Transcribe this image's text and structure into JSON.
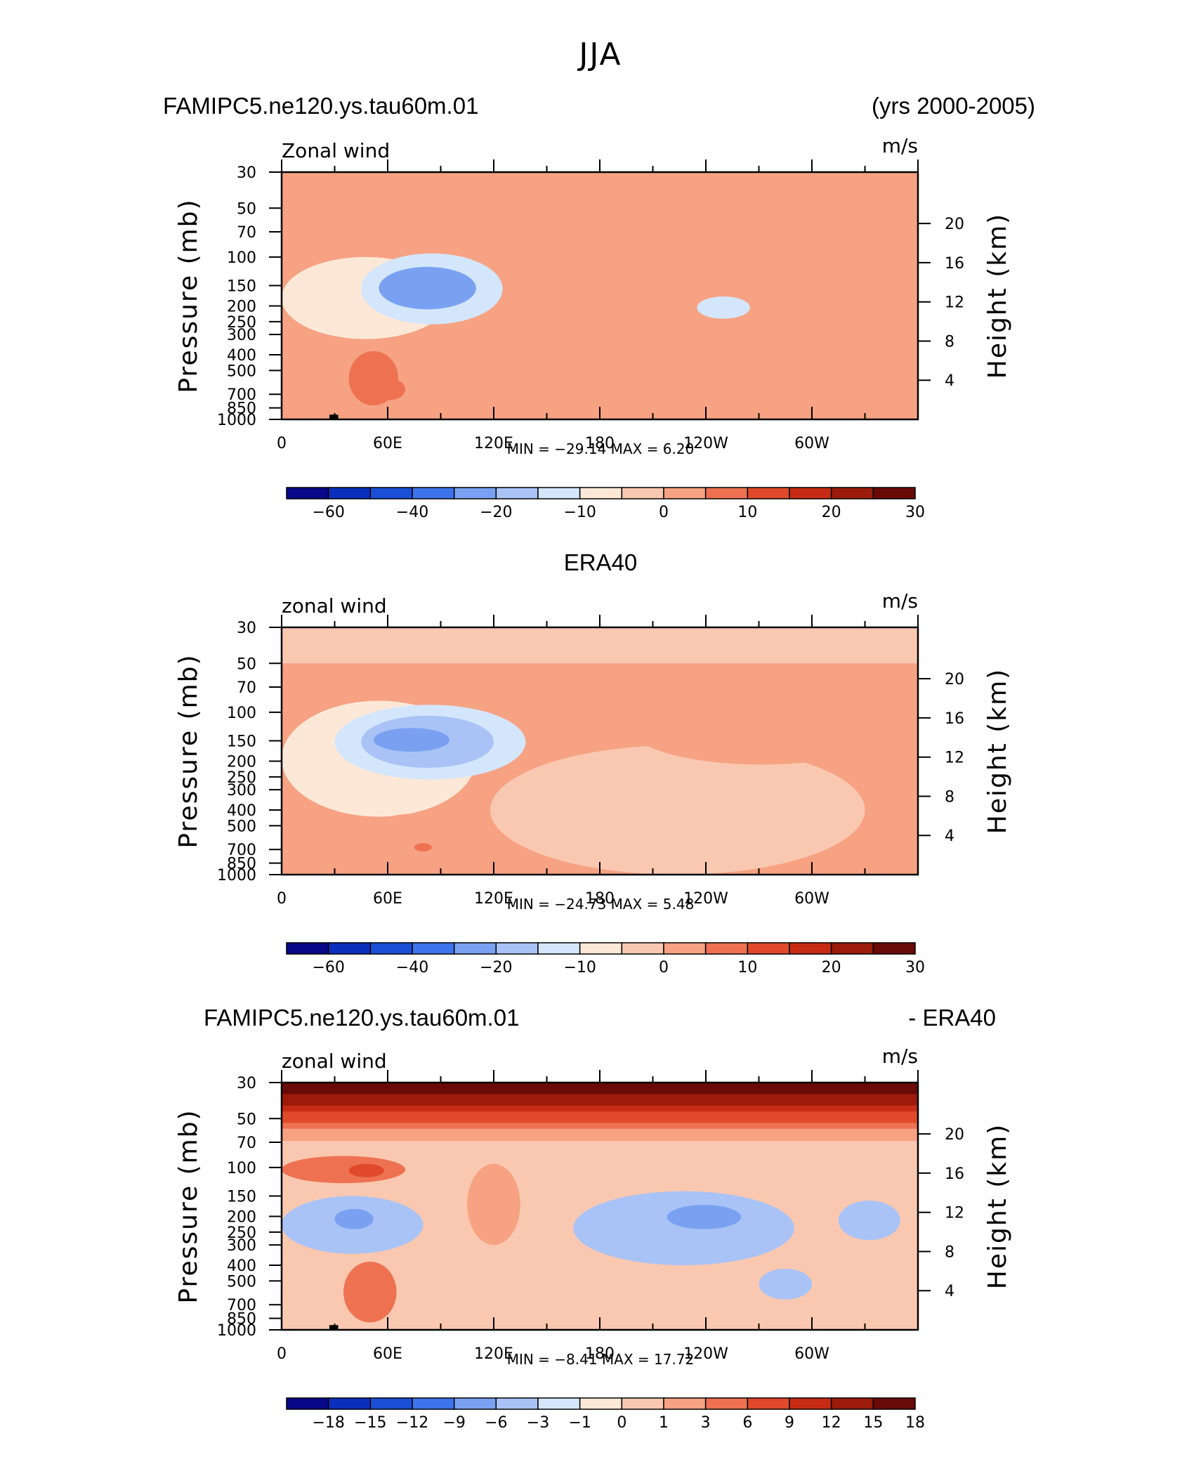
{
  "figure": {
    "title": "JJA",
    "colors": {
      "levels": [
        "#08088a",
        "#0b2fbd",
        "#1a4fd6",
        "#3d74ec",
        "#7aa1f1",
        "#a9c3f6",
        "#d4e6fb",
        "#fde8d8",
        "#fac8b0",
        "#f6a283",
        "#ee7252",
        "#e04a2a",
        "#c62b14",
        "#9c1b0b",
        "#6a0a06"
      ],
      "topography": "#000000"
    }
  },
  "panels": [
    {
      "header_left": "FAMIPC5.ne120.ys.tau60m.01",
      "header_center": "",
      "header_right": "(yrs 2000-2005)",
      "variable": "Zonal wind",
      "units": "m/s",
      "ylabel_left": "Pressure (mb)",
      "ylabel_right": "Height (km)",
      "stats_label": "MIN =  −29.14   MAX =     6.20",
      "colorbar_labels": [
        "−60",
        "−40",
        "−20",
        "−10",
        "0",
        "10",
        "20",
        "30"
      ]
    },
    {
      "header_left": "",
      "header_center": "ERA40",
      "header_right": "",
      "variable": "zonal wind",
      "units": "m/s",
      "ylabel_left": "Pressure (mb)",
      "ylabel_right": "Height (km)",
      "stats_label": "MIN =  −24.73   MAX =     5.48",
      "colorbar_labels": [
        "−60",
        "−40",
        "−20",
        "−10",
        "0",
        "10",
        "20",
        "30"
      ]
    },
    {
      "header_left": "FAMIPC5.ne120.ys.tau60m.01",
      "header_center": "",
      "header_right": "- ERA40",
      "variable": "zonal wind",
      "units": "m/s",
      "ylabel_left": "Pressure (mb)",
      "ylabel_right": "Height (km)",
      "stats_label": "MIN =    −8.41   MAX =    17.72",
      "colorbar_labels": [
        "−18",
        "−15",
        "−12",
        "−9",
        "−6",
        "−3",
        "−1",
        "0",
        "1",
        "3",
        "6",
        "9",
        "12",
        "15",
        "18"
      ]
    }
  ],
  "chart_data": [
    {
      "type": "heatmap",
      "title": "FAMIPC5.ne120.ys.tau60m.01 (yrs 2000-2005)",
      "xlabel": "",
      "ylabel": "Pressure (mb)",
      "xticks": [
        "0",
        "60E",
        "120E",
        "180",
        "120W",
        "60W"
      ],
      "x_values": [
        0,
        60,
        120,
        180,
        240,
        300
      ],
      "xlim": [
        0,
        360
      ],
      "yticks": [
        30,
        50,
        70,
        100,
        150,
        200,
        250,
        300,
        400,
        500,
        700,
        850,
        1000
      ],
      "ylim": [
        1000,
        30
      ],
      "y2ticks": [
        4,
        8,
        12,
        16,
        20
      ],
      "y2label": "Height (km)",
      "yscale": "log",
      "min": -29.14,
      "max": 6.2,
      "contour_levels": [
        -70,
        -60,
        -50,
        -40,
        -30,
        -20,
        -15,
        -10,
        -5,
        0,
        5,
        10,
        15,
        20,
        25,
        30,
        35
      ],
      "features": [
        {
          "kind": "band",
          "lon": [
            0,
            360
          ],
          "p": [
            30,
            55
          ],
          "value": 2
        },
        {
          "kind": "blob",
          "lon": [
            0,
            95
          ],
          "p": [
            100,
            320
          ],
          "value": -10
        },
        {
          "kind": "blob",
          "lon": [
            45,
            125
          ],
          "p": [
            95,
            260
          ],
          "value": -15
        },
        {
          "kind": "blob",
          "lon": [
            55,
            110
          ],
          "p": [
            115,
            210
          ],
          "value": -22
        },
        {
          "kind": "blob",
          "lon": [
            62,
            96
          ],
          "p": [
            125,
            185
          ],
          "value": -29
        },
        {
          "kind": "blob",
          "lon": [
            228,
            328
          ],
          "p": [
            80,
            180
          ],
          "value": 3
        },
        {
          "kind": "blob",
          "lon": [
            235,
            265
          ],
          "p": [
            175,
            240
          ],
          "value": -12
        },
        {
          "kind": "blob",
          "lon": [
            35,
            110
          ],
          "p": [
            350,
            1000
          ],
          "value": 2
        },
        {
          "kind": "blob",
          "lon": [
            38,
            66
          ],
          "p": [
            380,
            820
          ],
          "value": 5
        },
        {
          "kind": "blob",
          "lon": [
            52,
            70
          ],
          "p": [
            560,
            760
          ],
          "value": 6
        }
      ]
    },
    {
      "type": "heatmap",
      "title": "ERA40",
      "xlabel": "",
      "ylabel": "Pressure (mb)",
      "xticks": [
        "0",
        "60E",
        "120E",
        "180",
        "120W",
        "60W"
      ],
      "x_values": [
        0,
        60,
        120,
        180,
        240,
        300
      ],
      "xlim": [
        0,
        360
      ],
      "yticks": [
        30,
        50,
        70,
        100,
        150,
        200,
        250,
        300,
        400,
        500,
        700,
        850,
        1000
      ],
      "ylim": [
        1000,
        30
      ],
      "y2ticks": [
        4,
        8,
        12,
        16,
        20
      ],
      "y2label": "Height (km)",
      "yscale": "log",
      "min": -24.73,
      "max": 5.48,
      "contour_levels": [
        -70,
        -60,
        -50,
        -40,
        -30,
        -20,
        -15,
        -10,
        -5,
        0,
        5,
        10,
        15,
        20,
        25,
        30,
        35
      ],
      "features": [
        {
          "kind": "band",
          "lon": [
            0,
            360
          ],
          "p": [
            30,
            50
          ],
          "value": -3
        },
        {
          "kind": "blob",
          "lon": [
            0,
            110
          ],
          "p": [
            85,
            440
          ],
          "value": -6
        },
        {
          "kind": "blob",
          "lon": [
            30,
            138
          ],
          "p": [
            90,
            260
          ],
          "value": -12
        },
        {
          "kind": "blob",
          "lon": [
            45,
            120
          ],
          "p": [
            105,
            220
          ],
          "value": -18
        },
        {
          "kind": "blob",
          "lon": [
            52,
            95
          ],
          "p": [
            125,
            175
          ],
          "value": -24
        },
        {
          "kind": "blob",
          "lon": [
            118,
            330
          ],
          "p": [
            160,
            1000
          ],
          "value": -3
        },
        {
          "kind": "blob",
          "lon": [
            198,
            345
          ],
          "p": [
            75,
            210
          ],
          "value": 3
        },
        {
          "kind": "blob",
          "lon": [
            40,
            115
          ],
          "p": [
            420,
            1000
          ],
          "value": 3
        },
        {
          "kind": "blob",
          "lon": [
            75,
            85
          ],
          "p": [
            640,
            720
          ],
          "value": 5
        }
      ]
    },
    {
      "type": "heatmap",
      "title": "FAMIPC5.ne120.ys.tau60m.01 - ERA40",
      "xlabel": "",
      "ylabel": "Pressure (mb)",
      "xticks": [
        "0",
        "60E",
        "120E",
        "180",
        "120W",
        "60W"
      ],
      "x_values": [
        0,
        60,
        120,
        180,
        240,
        300
      ],
      "xlim": [
        0,
        360
      ],
      "yticks": [
        30,
        50,
        70,
        100,
        150,
        200,
        250,
        300,
        400,
        500,
        700,
        850,
        1000
      ],
      "ylim": [
        1000,
        30
      ],
      "y2ticks": [
        4,
        8,
        12,
        16,
        20
      ],
      "y2label": "Height (km)",
      "yscale": "log",
      "min": -8.41,
      "max": 17.72,
      "contour_levels": [
        -21,
        -18,
        -15,
        -12,
        -9,
        -6,
        -3,
        -1,
        0,
        1,
        3,
        6,
        9,
        12,
        15,
        18,
        21
      ],
      "features": [
        {
          "kind": "gradient_band",
          "lon": [
            0,
            360
          ],
          "p": [
            30,
            68
          ],
          "value_top": 17.7,
          "value_bottom": 1
        },
        {
          "kind": "blob",
          "lon": [
            0,
            70
          ],
          "p": [
            85,
            125
          ],
          "value": 3
        },
        {
          "kind": "blob",
          "lon": [
            38,
            58
          ],
          "p": [
            95,
            115
          ],
          "value": 7
        },
        {
          "kind": "blob",
          "lon": [
            0,
            80
          ],
          "p": [
            150,
            340
          ],
          "value": -4
        },
        {
          "kind": "blob",
          "lon": [
            30,
            52
          ],
          "p": [
            180,
            240
          ],
          "value": -7
        },
        {
          "kind": "blob",
          "lon": [
            105,
            135
          ],
          "p": [
            95,
            300
          ],
          "value": 2
        },
        {
          "kind": "blob",
          "lon": [
            165,
            290
          ],
          "p": [
            140,
            400
          ],
          "value": -4
        },
        {
          "kind": "blob",
          "lon": [
            218,
            260
          ],
          "p": [
            170,
            240
          ],
          "value": -8
        },
        {
          "kind": "blob",
          "lon": [
            35,
            65
          ],
          "p": [
            380,
            900
          ],
          "value": 3
        },
        {
          "kind": "blob",
          "lon": [
            270,
            300
          ],
          "p": [
            420,
            650
          ],
          "value": -5
        },
        {
          "kind": "blob",
          "lon": [
            315,
            350
          ],
          "p": [
            160,
            280
          ],
          "value": -5
        }
      ]
    }
  ]
}
